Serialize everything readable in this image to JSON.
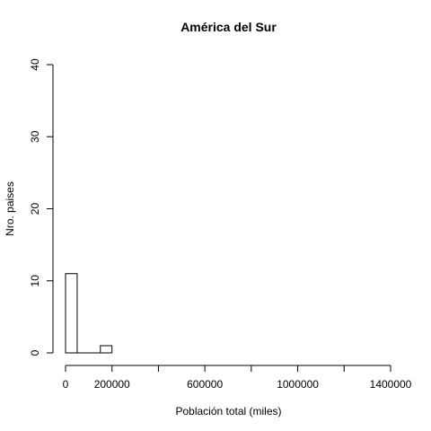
{
  "chart_data": {
    "type": "bar",
    "title": "América del Sur",
    "xlabel": "Población total (miles)",
    "ylabel": "Nro. paises",
    "xlim": [
      0,
      1400000
    ],
    "ylim": [
      0,
      40
    ],
    "grid": false,
    "bins": [
      {
        "from": 0,
        "to": 50000,
        "count": 11
      },
      {
        "from": 50000,
        "to": 100000,
        "count": 0
      },
      {
        "from": 100000,
        "to": 150000,
        "count": 0
      },
      {
        "from": 150000,
        "to": 200000,
        "count": 1
      }
    ],
    "x_ticks": [
      0,
      200000,
      400000,
      600000,
      800000,
      1000000,
      1200000,
      1400000
    ],
    "x_tick_labels": [
      "0",
      "200000",
      "",
      "600000",
      "",
      "1000000",
      "",
      "1400000"
    ],
    "y_ticks": [
      0,
      10,
      20,
      30,
      40
    ],
    "y_tick_labels": [
      "0",
      "10",
      "20",
      "30",
      "40"
    ]
  }
}
